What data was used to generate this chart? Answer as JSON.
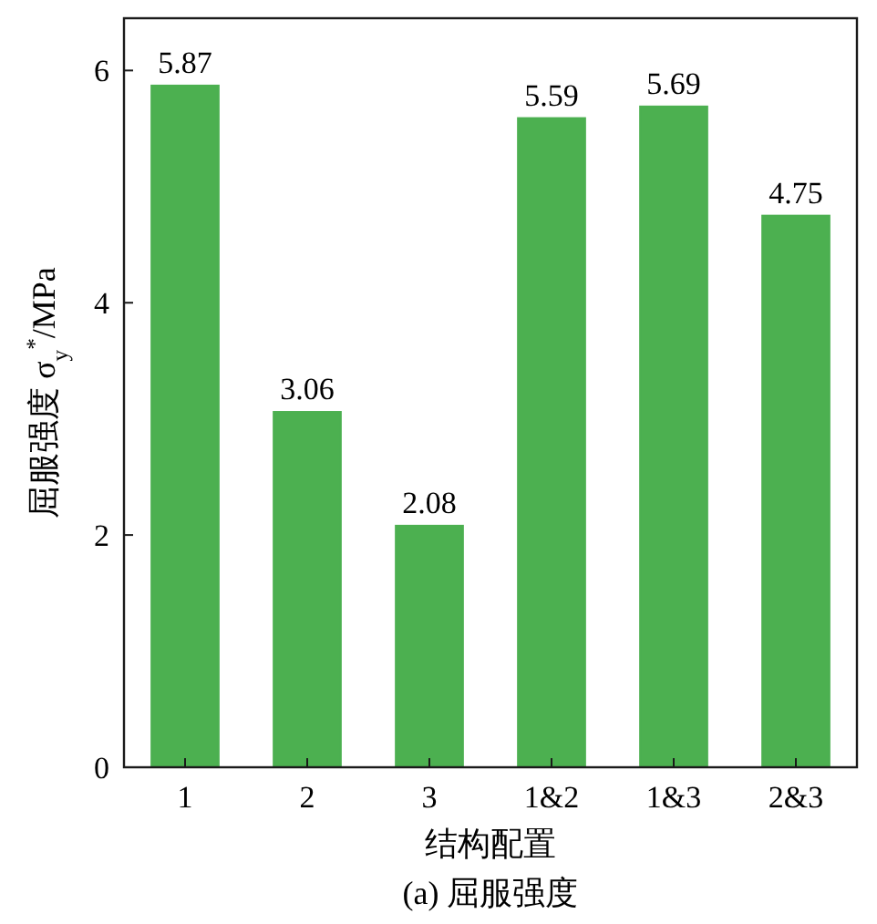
{
  "chart_data": {
    "type": "bar",
    "title": "(a) 屈服强度",
    "xlabel": "结构配置",
    "ylabel": "屈服强度 σ$_{y}$$^{*}$/MPa",
    "categories": [
      "1",
      "2",
      "3",
      "1&2",
      "1&3",
      "2&3"
    ],
    "values": [
      5.87,
      3.06,
      2.08,
      5.59,
      5.69,
      4.75
    ],
    "color": "#4cb050",
    "ylim": [
      0,
      6.45
    ],
    "yticks": [
      0,
      2,
      4,
      6
    ],
    "data_labels": true,
    "grid": false
  }
}
